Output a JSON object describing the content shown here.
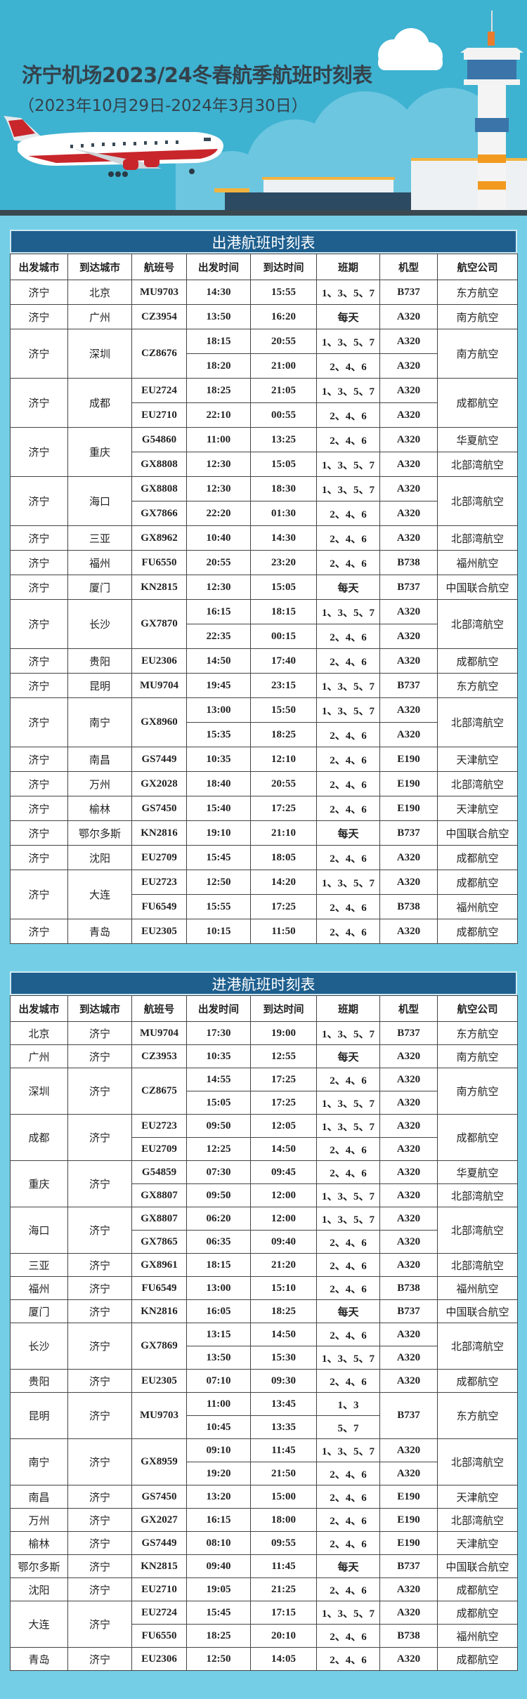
{
  "header": {
    "title": "济宁机场2023/24冬春航季航班时刻表",
    "subtitle": "（2023年10月29日-2024年3月30日）"
  },
  "colors": {
    "sky": "#3eb2d1",
    "section_header": "#1e5f8e",
    "frame": "#74cfe6",
    "title_text": "#34424b"
  },
  "columns": [
    "出发城市",
    "到达城市",
    "航班号",
    "出发时间",
    "到达时间",
    "班期",
    "机型",
    "航空公司"
  ],
  "outbound": {
    "title": "出港航班时刻表",
    "groups": [
      {
        "dep": "济宁",
        "arr": "北京",
        "legs": [
          {
            "flight": "MU9703",
            "dep_time": "14:30",
            "arr_time": "15:55",
            "days": "1、3、5、7",
            "aircraft": "B737",
            "airline": "东方航空"
          }
        ]
      },
      {
        "dep": "济宁",
        "arr": "广州",
        "legs": [
          {
            "flight": "CZ3954",
            "dep_time": "13:50",
            "arr_time": "16:20",
            "days": "每天",
            "aircraft": "A320",
            "airline": "南方航空"
          }
        ]
      },
      {
        "dep": "济宁",
        "arr": "深圳",
        "flight": "CZ8676",
        "airline": "南方航空",
        "legs": [
          {
            "dep_time": "18:15",
            "arr_time": "20:55",
            "days": "1、3、5、7",
            "aircraft": "A320"
          },
          {
            "dep_time": "18:20",
            "arr_time": "21:00",
            "days": "2、4、6",
            "aircraft": "A320"
          }
        ]
      },
      {
        "dep": "济宁",
        "arr": "成都",
        "airline": "成都航空",
        "legs": [
          {
            "flight": "EU2724",
            "dep_time": "18:25",
            "arr_time": "21:05",
            "days": "1、3、5、7",
            "aircraft": "A320"
          },
          {
            "flight": "EU2710",
            "dep_time": "22:10",
            "arr_time": "00:55",
            "days": "2、4、6",
            "aircraft": "A320"
          }
        ]
      },
      {
        "dep": "济宁",
        "arr": "重庆",
        "legs": [
          {
            "flight": "G54860",
            "dep_time": "11:00",
            "arr_time": "13:25",
            "days": "2、4、6",
            "aircraft": "A320",
            "airline": "华夏航空"
          },
          {
            "flight": "GX8808",
            "dep_time": "12:30",
            "arr_time": "15:05",
            "days": "1、3、5、7",
            "aircraft": "A320",
            "airline": "北部湾航空"
          }
        ]
      },
      {
        "dep": "济宁",
        "arr": "海口",
        "airline": "北部湾航空",
        "legs": [
          {
            "flight": "GX8808",
            "dep_time": "12:30",
            "arr_time": "18:30",
            "days": "1、3、5、7",
            "aircraft": "A320"
          },
          {
            "flight": "GX7866",
            "dep_time": "22:20",
            "arr_time": "01:30",
            "days": "2、4、6",
            "aircraft": "A320"
          }
        ]
      },
      {
        "dep": "济宁",
        "arr": "三亚",
        "legs": [
          {
            "flight": "GX8962",
            "dep_time": "10:40",
            "arr_time": "14:30",
            "days": "2、4、6",
            "aircraft": "A320",
            "airline": "北部湾航空"
          }
        ]
      },
      {
        "dep": "济宁",
        "arr": "福州",
        "legs": [
          {
            "flight": "FU6550",
            "dep_time": "20:55",
            "arr_time": "23:20",
            "days": "2、4、6",
            "aircraft": "B738",
            "airline": "福州航空"
          }
        ]
      },
      {
        "dep": "济宁",
        "arr": "厦门",
        "legs": [
          {
            "flight": "KN2815",
            "dep_time": "12:30",
            "arr_time": "15:05",
            "days": "每天",
            "aircraft": "B737",
            "airline": "中国联合航空"
          }
        ]
      },
      {
        "dep": "济宁",
        "arr": "长沙",
        "flight": "GX7870",
        "airline": "北部湾航空",
        "legs": [
          {
            "dep_time": "16:15",
            "arr_time": "18:15",
            "days": "1、3、5、7",
            "aircraft": "A320"
          },
          {
            "dep_time": "22:35",
            "arr_time": "00:15",
            "days": "2、4、6",
            "aircraft": "A320"
          }
        ]
      },
      {
        "dep": "济宁",
        "arr": "贵阳",
        "legs": [
          {
            "flight": "EU2306",
            "dep_time": "14:50",
            "arr_time": "17:40",
            "days": "2、4、6",
            "aircraft": "A320",
            "airline": "成都航空"
          }
        ]
      },
      {
        "dep": "济宁",
        "arr": "昆明",
        "legs": [
          {
            "flight": "MU9704",
            "dep_time": "19:45",
            "arr_time": "23:15",
            "days": "1、3、5、7",
            "aircraft": "B737",
            "airline": "东方航空"
          }
        ]
      },
      {
        "dep": "济宁",
        "arr": "南宁",
        "flight": "GX8960",
        "airline": "北部湾航空",
        "legs": [
          {
            "dep_time": "13:00",
            "arr_time": "15:50",
            "days": "1、3、5、7",
            "aircraft": "A320"
          },
          {
            "dep_time": "15:35",
            "arr_time": "18:25",
            "days": "2、4、6",
            "aircraft": "A320"
          }
        ]
      },
      {
        "dep": "济宁",
        "arr": "南昌",
        "legs": [
          {
            "flight": "GS7449",
            "dep_time": "10:35",
            "arr_time": "12:10",
            "days": "2、4、6",
            "aircraft": "E190",
            "airline": "天津航空"
          }
        ]
      },
      {
        "dep": "济宁",
        "arr": "万州",
        "legs": [
          {
            "flight": "GX2028",
            "dep_time": "18:40",
            "arr_time": "20:55",
            "days": "2、4、6",
            "aircraft": "E190",
            "airline": "北部湾航空"
          }
        ]
      },
      {
        "dep": "济宁",
        "arr": "榆林",
        "legs": [
          {
            "flight": "GS7450",
            "dep_time": "15:40",
            "arr_time": "17:25",
            "days": "2、4、6",
            "aircraft": "E190",
            "airline": "天津航空"
          }
        ]
      },
      {
        "dep": "济宁",
        "arr": "鄂尔多斯",
        "legs": [
          {
            "flight": "KN2816",
            "dep_time": "19:10",
            "arr_time": "21:10",
            "days": "每天",
            "aircraft": "B737",
            "airline": "中国联合航空"
          }
        ]
      },
      {
        "dep": "济宁",
        "arr": "沈阳",
        "legs": [
          {
            "flight": "EU2709",
            "dep_time": "15:45",
            "arr_time": "18:05",
            "days": "2、4、6",
            "aircraft": "A320",
            "airline": "成都航空"
          }
        ]
      },
      {
        "dep": "济宁",
        "arr": "大连",
        "legs": [
          {
            "flight": "EU2723",
            "dep_time": "12:50",
            "arr_time": "14:20",
            "days": "1、3、5、7",
            "aircraft": "A320",
            "airline": "成都航空"
          },
          {
            "flight": "FU6549",
            "dep_time": "15:55",
            "arr_time": "17:25",
            "days": "2、4、6",
            "aircraft": "B738",
            "airline": "福州航空"
          }
        ]
      },
      {
        "dep": "济宁",
        "arr": "青岛",
        "legs": [
          {
            "flight": "EU2305",
            "dep_time": "10:15",
            "arr_time": "11:50",
            "days": "2、4、6",
            "aircraft": "A320",
            "airline": "成都航空"
          }
        ]
      }
    ]
  },
  "inbound": {
    "title": "进港航班时刻表",
    "groups": [
      {
        "dep": "北京",
        "arr": "济宁",
        "legs": [
          {
            "flight": "MU9704",
            "dep_time": "17:30",
            "arr_time": "19:00",
            "days": "1、3、5、7",
            "aircraft": "B737",
            "airline": "东方航空"
          }
        ]
      },
      {
        "dep": "广州",
        "arr": "济宁",
        "legs": [
          {
            "flight": "CZ3953",
            "dep_time": "10:35",
            "arr_time": "12:55",
            "days": "每天",
            "aircraft": "A320",
            "airline": "南方航空"
          }
        ]
      },
      {
        "dep": "深圳",
        "arr": "济宁",
        "flight": "CZ8675",
        "airline": "南方航空",
        "legs": [
          {
            "dep_time": "14:55",
            "arr_time": "17:25",
            "days": "2、4、6",
            "aircraft": "A320"
          },
          {
            "dep_time": "15:05",
            "arr_time": "17:25",
            "days": "1、3、5、7",
            "aircraft": "A320"
          }
        ]
      },
      {
        "dep": "成都",
        "arr": "济宁",
        "airline": "成都航空",
        "legs": [
          {
            "flight": "EU2723",
            "dep_time": "09:50",
            "arr_time": "12:05",
            "days": "1、3、5、7",
            "aircraft": "A320"
          },
          {
            "flight": "EU2709",
            "dep_time": "12:25",
            "arr_time": "14:50",
            "days": "2、4、6",
            "aircraft": "A320"
          }
        ]
      },
      {
        "dep": "重庆",
        "arr": "济宁",
        "legs": [
          {
            "flight": "G54859",
            "dep_time": "07:30",
            "arr_time": "09:45",
            "days": "2、4、6",
            "aircraft": "A320",
            "airline": "华夏航空"
          },
          {
            "flight": "GX8807",
            "dep_time": "09:50",
            "arr_time": "12:00",
            "days": "1、3、5、7",
            "aircraft": "A320",
            "airline": "北部湾航空"
          }
        ]
      },
      {
        "dep": "海口",
        "arr": "济宁",
        "airline": "北部湾航空",
        "legs": [
          {
            "flight": "GX8807",
            "dep_time": "06:20",
            "arr_time": "12:00",
            "days": "1、3、5、7",
            "aircraft": "A320"
          },
          {
            "flight": "GX7865",
            "dep_time": "06:35",
            "arr_time": "09:40",
            "days": "2、4、6",
            "aircraft": "A320"
          }
        ]
      },
      {
        "dep": "三亚",
        "arr": "济宁",
        "legs": [
          {
            "flight": "GX8961",
            "dep_time": "18:15",
            "arr_time": "21:20",
            "days": "2、4、6",
            "aircraft": "A320",
            "airline": "北部湾航空"
          }
        ]
      },
      {
        "dep": "福州",
        "arr": "济宁",
        "legs": [
          {
            "flight": "FU6549",
            "dep_time": "13:00",
            "arr_time": "15:10",
            "days": "2、4、6",
            "aircraft": "B738",
            "airline": "福州航空"
          }
        ]
      },
      {
        "dep": "厦门",
        "arr": "济宁",
        "legs": [
          {
            "flight": "KN2816",
            "dep_time": "16:05",
            "arr_time": "18:25",
            "days": "每天",
            "aircraft": "B737",
            "airline": "中国联合航空"
          }
        ]
      },
      {
        "dep": "长沙",
        "arr": "济宁",
        "flight": "GX7869",
        "airline": "北部湾航空",
        "legs": [
          {
            "dep_time": "13:15",
            "arr_time": "14:50",
            "days": "2、4、6",
            "aircraft": "A320"
          },
          {
            "dep_time": "13:50",
            "arr_time": "15:30",
            "days": "1、3、5、7",
            "aircraft": "A320"
          }
        ]
      },
      {
        "dep": "贵阳",
        "arr": "济宁",
        "legs": [
          {
            "flight": "EU2305",
            "dep_time": "07:10",
            "arr_time": "09:30",
            "days": "2、4、6",
            "aircraft": "A320",
            "airline": "成都航空"
          }
        ]
      },
      {
        "dep": "昆明",
        "arr": "济宁",
        "flight": "MU9703",
        "aircraft": "B737",
        "airline": "东方航空",
        "legs": [
          {
            "dep_time": "11:00",
            "arr_time": "13:45",
            "days": "1、3"
          },
          {
            "dep_time": "10:45",
            "arr_time": "13:35",
            "days": "5、7"
          }
        ]
      },
      {
        "dep": "南宁",
        "arr": "济宁",
        "flight": "GX8959",
        "airline": "北部湾航空",
        "legs": [
          {
            "dep_time": "09:10",
            "arr_time": "11:45",
            "days": "1、3、5、7",
            "aircraft": "A320"
          },
          {
            "dep_time": "19:20",
            "arr_time": "21:50",
            "days": "2、4、6",
            "aircraft": "A320"
          }
        ]
      },
      {
        "dep": "南昌",
        "arr": "济宁",
        "legs": [
          {
            "flight": "GS7450",
            "dep_time": "13:20",
            "arr_time": "15:00",
            "days": "2、4、6",
            "aircraft": "E190",
            "airline": "天津航空"
          }
        ]
      },
      {
        "dep": "万州",
        "arr": "济宁",
        "legs": [
          {
            "flight": "GX2027",
            "dep_time": "16:15",
            "arr_time": "18:00",
            "days": "2、4、6",
            "aircraft": "E190",
            "airline": "北部湾航空"
          }
        ]
      },
      {
        "dep": "榆林",
        "arr": "济宁",
        "legs": [
          {
            "flight": "GS7449",
            "dep_time": "08:10",
            "arr_time": "09:55",
            "days": "2、4、6",
            "aircraft": "E190",
            "airline": "天津航空"
          }
        ]
      },
      {
        "dep": "鄂尔多斯",
        "arr": "济宁",
        "legs": [
          {
            "flight": "KN2815",
            "dep_time": "09:40",
            "arr_time": "11:45",
            "days": "每天",
            "aircraft": "B737",
            "airline": "中国联合航空"
          }
        ]
      },
      {
        "dep": "沈阳",
        "arr": "济宁",
        "legs": [
          {
            "flight": "EU2710",
            "dep_time": "19:05",
            "arr_time": "21:25",
            "days": "2、4、6",
            "aircraft": "A320",
            "airline": "成都航空"
          }
        ]
      },
      {
        "dep": "大连",
        "arr": "济宁",
        "legs": [
          {
            "flight": "EU2724",
            "dep_time": "15:45",
            "arr_time": "17:15",
            "days": "1、3、5、7",
            "aircraft": "A320",
            "airline": "成都航空"
          },
          {
            "flight": "FU6550",
            "dep_time": "18:25",
            "arr_time": "20:10",
            "days": "2、4、6",
            "aircraft": "B738",
            "airline": "福州航空"
          }
        ]
      },
      {
        "dep": "青岛",
        "arr": "济宁",
        "legs": [
          {
            "flight": "EU2306",
            "dep_time": "12:50",
            "arr_time": "14:05",
            "days": "2、4、6",
            "aircraft": "A320",
            "airline": "成都航空"
          }
        ]
      }
    ]
  }
}
